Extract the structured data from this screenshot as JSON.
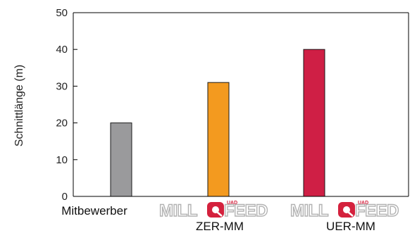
{
  "chart_data": {
    "type": "bar",
    "categories": [
      "Mitbewerber",
      "ZER-MM",
      "UER-MM"
    ],
    "values": [
      20,
      31,
      40
    ],
    "colors": [
      "#9a9a9c",
      "#f39a1f",
      "#cf1f45"
    ],
    "ylabel": "Schnittlänge (m)",
    "ylim": [
      0,
      50
    ],
    "yticks": [
      "0",
      "10",
      "20",
      "30",
      "40",
      "50"
    ],
    "grid": false,
    "logos": [
      {
        "category": "ZER-MM",
        "text_before": "MILL",
        "q": "Q",
        "text_after": "FEED",
        "superscript": "UAD"
      },
      {
        "category": "UER-MM",
        "text_before": "MILL",
        "q": "Q",
        "text_after": "FEED",
        "superscript": "UAD"
      }
    ]
  }
}
